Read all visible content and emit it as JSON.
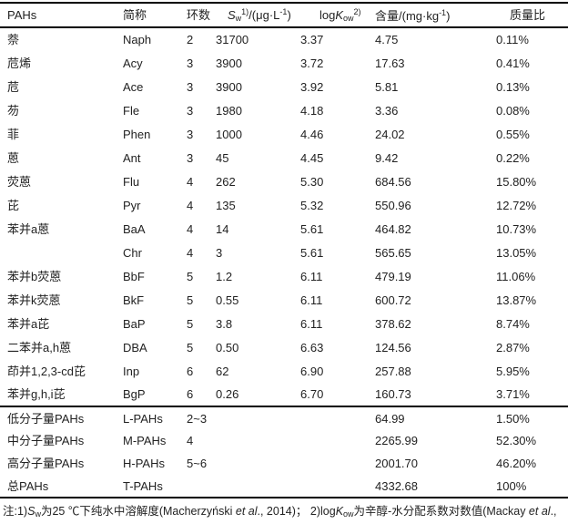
{
  "table": {
    "header": {
      "pahs": "PAHs",
      "abbr": "简称",
      "rings": "环数",
      "sw": {
        "s": "S",
        "sub": "w",
        "sup": "1)",
        "mid": "/(μg·L",
        "exp": "-1",
        "close": ")"
      },
      "logkow": {
        "log": "log",
        "k": "K",
        "sub": "ow",
        "sup": "2)"
      },
      "content": {
        "text": "含量/(mg·kg",
        "exp": "-1",
        "close": ")"
      },
      "ratio": "质量比"
    },
    "rows": [
      {
        "name": "萘",
        "abbr": "Naph",
        "rings": "2",
        "sw": "31700",
        "logkow": "3.37",
        "content": "4.75",
        "ratio": "0.11%"
      },
      {
        "name": "苊烯",
        "abbr": "Acy",
        "rings": "3",
        "sw": "3900",
        "logkow": "3.72",
        "content": "17.63",
        "ratio": "0.41%"
      },
      {
        "name": "苊",
        "abbr": "Ace",
        "rings": "3",
        "sw": "3900",
        "logkow": "3.92",
        "content": "5.81",
        "ratio": "0.13%"
      },
      {
        "name": "芴",
        "abbr": "Fle",
        "rings": "3",
        "sw": "1980",
        "logkow": "4.18",
        "content": "3.36",
        "ratio": "0.08%"
      },
      {
        "name": "菲",
        "abbr": "Phen",
        "rings": "3",
        "sw": "1000",
        "logkow": "4.46",
        "content": "24.02",
        "ratio": "0.55%"
      },
      {
        "name": "蒽",
        "abbr": "Ant",
        "rings": "3",
        "sw": "45",
        "logkow": "4.45",
        "content": "9.42",
        "ratio": "0.22%"
      },
      {
        "name": "荧蒽",
        "abbr": "Flu",
        "rings": "4",
        "sw": "262",
        "logkow": "5.30",
        "content": "684.56",
        "ratio": "15.80%"
      },
      {
        "name": "芘",
        "abbr": "Pyr",
        "rings": "4",
        "sw": "135",
        "logkow": "5.32",
        "content": "550.96",
        "ratio": "12.72%"
      },
      {
        "name": "苯并a蒽",
        "abbr": "BaA",
        "rings": "4",
        "sw": "14",
        "logkow": "5.61",
        "content": "464.82",
        "ratio": "10.73%"
      },
      {
        "name": "",
        "abbr": "Chr",
        "rings": "4",
        "sw": "3",
        "logkow": "5.61",
        "content": "565.65",
        "ratio": "13.05%"
      },
      {
        "name": "苯并b荧蒽",
        "abbr": "BbF",
        "rings": "5",
        "sw": "1.2",
        "logkow": "6.11",
        "content": "479.19",
        "ratio": "11.06%"
      },
      {
        "name": "苯并k荧蒽",
        "abbr": "BkF",
        "rings": "5",
        "sw": "0.55",
        "logkow": "6.11",
        "content": "600.72",
        "ratio": "13.87%"
      },
      {
        "name": "苯并a芘",
        "abbr": "BaP",
        "rings": "5",
        "sw": "3.8",
        "logkow": "6.11",
        "content": "378.62",
        "ratio": "8.74%"
      },
      {
        "name": "二苯并a,h蒽",
        "abbr": "DBA",
        "rings": "5",
        "sw": "0.50",
        "logkow": "6.63",
        "content": "124.56",
        "ratio": "2.87%"
      },
      {
        "name": "茚并1,2,3-cd芘",
        "abbr": "Inp",
        "rings": "6",
        "sw": "62",
        "logkow": "6.90",
        "content": "257.88",
        "ratio": "5.95%"
      },
      {
        "name": "苯并g,h,i芘",
        "abbr": "BgP",
        "rings": "6",
        "sw": "0.26",
        "logkow": "6.70",
        "content": "160.73",
        "ratio": "3.71%"
      }
    ],
    "summary_rows": [
      {
        "name": "低分子量PAHs",
        "abbr": "L-PAHs",
        "rings": "2~3",
        "sw": "",
        "logkow": "",
        "content": "64.99",
        "ratio": "1.50%"
      },
      {
        "name": "中分子量PAHs",
        "abbr": "M-PAHs",
        "rings": "4",
        "sw": "",
        "logkow": "",
        "content": "2265.99",
        "ratio": "52.30%"
      },
      {
        "name": "高分子量PAHs",
        "abbr": "H-PAHs",
        "rings": "5~6",
        "sw": "",
        "logkow": "",
        "content": "2001.70",
        "ratio": "46.20%"
      },
      {
        "name": "总PAHs",
        "abbr": "T-PAHs",
        "rings": "",
        "sw": "",
        "logkow": "",
        "content": "4332.68",
        "ratio": "100%"
      }
    ]
  },
  "footnote": {
    "p1": "注:1)",
    "sw_s": "S",
    "sw_sub": "w",
    "p2": "为25 ℃下纯水中溶解度(Macherzyński ",
    "etal1": "et al",
    "p3": "., 2014)； 2)log",
    "kow_k": "K",
    "kow_sub": "ow",
    "p4": "为辛醇-水分配系数对数值(Mackay ",
    "etal2": "et al",
    "p5": ".,"
  }
}
